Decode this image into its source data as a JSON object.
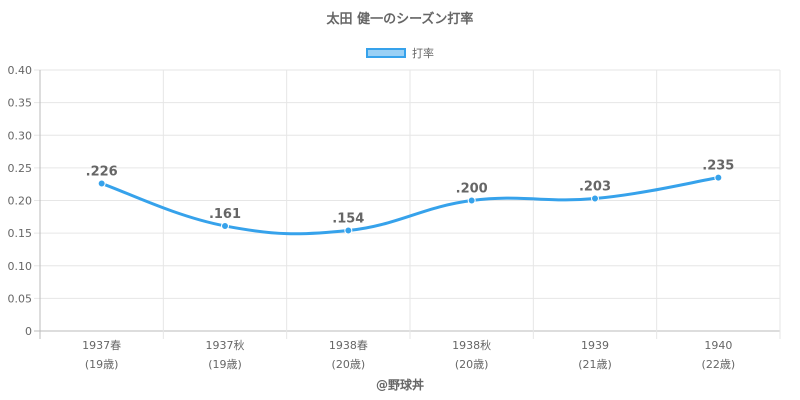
{
  "chart_data": {
    "type": "line",
    "title": "太田 健一のシーズン打率",
    "series": [
      {
        "name": "打率",
        "values": [
          0.226,
          0.161,
          0.154,
          0.2,
          0.203,
          0.235
        ],
        "labels": [
          ".226",
          ".161",
          ".154",
          ".200",
          ".203",
          ".235"
        ]
      }
    ],
    "categories": [
      {
        "year": "1937春",
        "age": "(19歳)"
      },
      {
        "year": "1937秋",
        "age": "(19歳)"
      },
      {
        "year": "1938春",
        "age": "(20歳)"
      },
      {
        "year": "1938秋",
        "age": "(20歳)"
      },
      {
        "year": "1939",
        "age": "(21歳)"
      },
      {
        "year": "1940",
        "age": "(22歳)"
      }
    ],
    "ylim": [
      0,
      0.4
    ],
    "yticks": [
      "0.40",
      "0.35",
      "0.30",
      "0.25",
      "0.20",
      "0.15",
      "0.10",
      "0.05",
      "0"
    ],
    "ytick_values": [
      0.4,
      0.35,
      0.3,
      0.25,
      0.2,
      0.15,
      0.1,
      0.05,
      0
    ],
    "grid": true,
    "legend_position": "top-center",
    "color": "#36a2eb"
  },
  "footer": "@野球丼"
}
